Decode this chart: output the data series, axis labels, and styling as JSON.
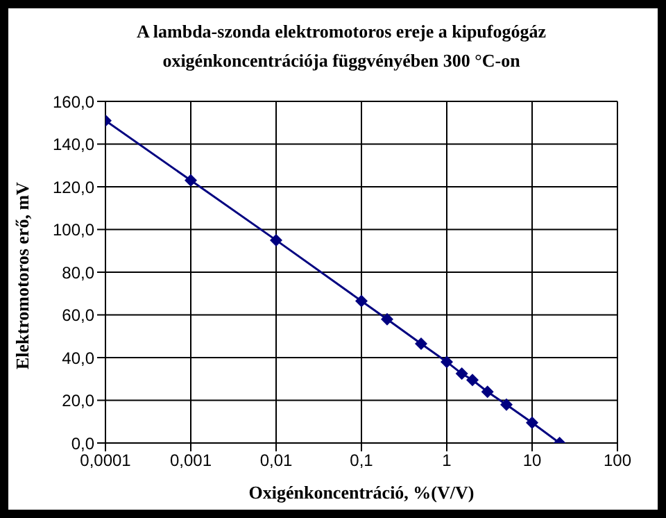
{
  "chart_data": {
    "type": "line",
    "title": "A lambda-szonda elektromotoros ereje a kipufogógáz oxigénkoncentrációja függvényében 300 °C-on",
    "xlabel": "Oxigénkoncentráció, %(V/V)",
    "ylabel": "Elektromotoros erő, mV",
    "x": [
      0.0001,
      0.001,
      0.01,
      0.1,
      0.2,
      0.5,
      1,
      1.5,
      2,
      3,
      5,
      10,
      21
    ],
    "series": [
      {
        "color": "#000080",
        "values": [
          151,
          123,
          95,
          66.5,
          58,
          46.5,
          38,
          32.5,
          29.5,
          24,
          18,
          9.5,
          0
        ]
      }
    ],
    "log": "x",
    "xlim": [
      0.0001,
      100
    ],
    "xticks": [
      {
        "value": 0.0001,
        "label": "0,0001"
      },
      {
        "value": 0.001,
        "label": "0,001"
      },
      {
        "value": 0.01,
        "label": "0,01"
      },
      {
        "value": 0.1,
        "label": "0,1"
      },
      1,
      10,
      100
    ],
    "ylim": [
      0,
      160
    ],
    "yticks": [
      {
        "value": 0,
        "label": "0,0"
      },
      {
        "value": 20,
        "label": "20,0"
      },
      {
        "value": 40,
        "label": "40,0"
      },
      {
        "value": 60,
        "label": "60,0"
      },
      {
        "value": 80,
        "label": "80,0"
      },
      {
        "value": 100,
        "label": "100,0"
      },
      {
        "value": 120,
        "label": "120,0"
      },
      {
        "value": 140,
        "label": "140,0"
      },
      {
        "value": 160,
        "label": "160,0"
      }
    ],
    "grid": true,
    "legend": false,
    "marker": "diamond",
    "line_style": "solid"
  }
}
